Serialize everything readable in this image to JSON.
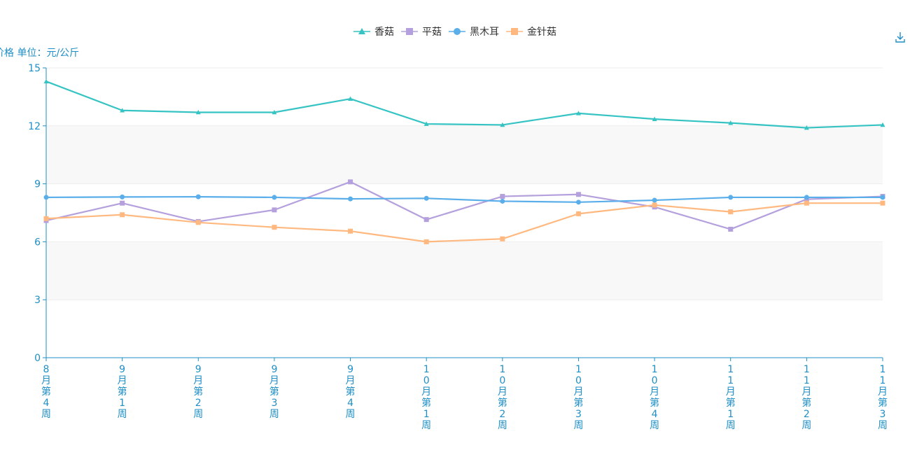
{
  "chart_data": {
    "type": "line",
    "ylabel": "价格 单位：元/公斤",
    "ylim": [
      0,
      15
    ],
    "yticks": [
      0,
      3,
      6,
      9,
      12,
      15
    ],
    "grid": "horizontal, alternating bands",
    "legend_position": "top-center",
    "categories": [
      "8月第4周",
      "9月第1周",
      "9月第2周",
      "9月第3周",
      "9月第4周",
      "10月第1周",
      "10月第2周",
      "10月第3周",
      "10月第4周",
      "11月第1周",
      "11月第2周",
      "11月第3周"
    ],
    "series": [
      {
        "name": "香菇",
        "color": "#36c3c3",
        "marker": "triangle",
        "values": [
          14.3,
          12.8,
          12.7,
          12.7,
          13.4,
          12.1,
          12.05,
          12.65,
          12.35,
          12.15,
          11.9,
          12.05
        ]
      },
      {
        "name": "平菇",
        "color": "#b4a0dc",
        "marker": "square",
        "values": [
          7.1,
          8.0,
          7.05,
          7.65,
          9.1,
          7.15,
          8.35,
          8.45,
          7.8,
          6.65,
          8.2,
          8.35
        ]
      },
      {
        "name": "黑木耳",
        "color": "#5aaeea",
        "marker": "circle",
        "values": [
          8.3,
          8.32,
          8.33,
          8.3,
          8.22,
          8.25,
          8.1,
          8.05,
          8.15,
          8.3,
          8.3,
          8.3
        ]
      },
      {
        "name": "金针菇",
        "color": "#ffb980",
        "marker": "square",
        "values": [
          7.2,
          7.4,
          7.0,
          6.75,
          6.55,
          6.0,
          6.15,
          7.45,
          7.9,
          7.55,
          8.0,
          8.0
        ]
      }
    ]
  },
  "toolbar": {
    "download_icon": "download-icon"
  }
}
